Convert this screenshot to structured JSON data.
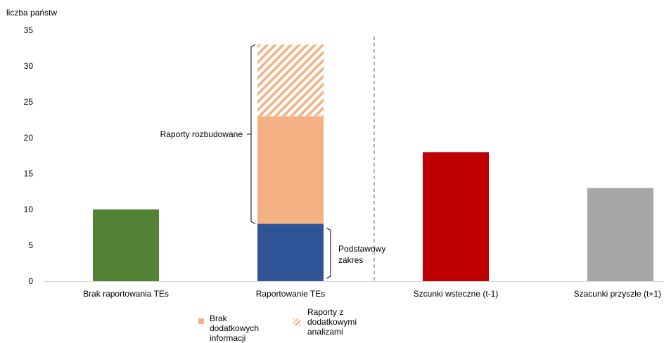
{
  "chart_data": {
    "type": "bar",
    "ylabel": "liczba państw",
    "ylim": [
      0,
      35
    ],
    "yticks": [
      0,
      5,
      10,
      15,
      20,
      25,
      30,
      35
    ],
    "grid": false,
    "categories": [
      "Brak raportowania TEs",
      "Raportowanie TEs",
      "Szcunki wsteczne (t-1)",
      "Szacunki przyszłe (t+1)"
    ],
    "bars": [
      {
        "category": "Brak raportowania TEs",
        "segments": [
          {
            "value": 10,
            "color": "#548235"
          }
        ]
      },
      {
        "category": "Raportowanie TEs",
        "segments": [
          {
            "value": 8,
            "color": "#2F5597",
            "series": "Podstawowy zakres"
          },
          {
            "value": 15,
            "color": "#F4B183",
            "series": "Brak dodatkowych informacji"
          },
          {
            "value": 10,
            "color": "#F4B183",
            "pattern": "hatched",
            "series": "Raporty z dodatkowymi analizami"
          }
        ]
      },
      {
        "category": "Szcunki wsteczne (t-1)",
        "segments": [
          {
            "value": 18,
            "color": "#C00000"
          }
        ]
      },
      {
        "category": "Szacunki przyszłe (t+1)",
        "segments": [
          {
            "value": 13,
            "color": "#A6A6A6"
          }
        ]
      }
    ],
    "annotations": [
      {
        "text": "Raporty rozbudowane",
        "range": [
          8,
          33
        ]
      },
      {
        "text_lines": [
          "Podstawowy",
          "zakres"
        ],
        "range": [
          0,
          8
        ]
      }
    ],
    "separator": "dashed vertical line between Raportowanie TEs and Szcunki wsteczne (t-1)",
    "legend": {
      "placement": "bottom-center",
      "items": [
        {
          "label_lines": [
            "Brak dodatkowych",
            "informacji"
          ],
          "color": "#F4B183",
          "pattern": "solid"
        },
        {
          "label_lines": [
            "Raporty z",
            "dodatkowymi",
            "analizami"
          ],
          "color": "#F4B183",
          "pattern": "hatched"
        }
      ]
    }
  }
}
